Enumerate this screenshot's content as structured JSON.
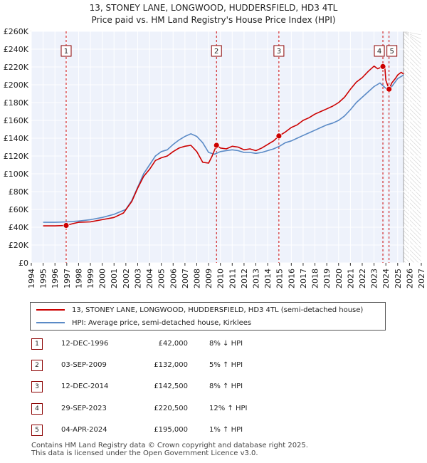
{
  "header": {
    "title_line1": "13, STONEY LANE, LONGWOOD, HUDDERSFIELD, HD3 4TL",
    "title_line2": "Price paid vs. HM Land Registry's House Price Index (HPI)"
  },
  "chart_data": {
    "type": "line",
    "xlim": [
      1994,
      2027
    ],
    "ylim": [
      0,
      260000
    ],
    "x_ticks": [
      1994,
      1995,
      1996,
      1997,
      1998,
      1999,
      2000,
      2001,
      2002,
      2003,
      2004,
      2005,
      2006,
      2007,
      2008,
      2009,
      2010,
      2011,
      2012,
      2013,
      2014,
      2015,
      2016,
      2017,
      2018,
      2019,
      2020,
      2021,
      2022,
      2023,
      2024,
      2025,
      2026,
      2027
    ],
    "y_ticks": [
      0,
      20000,
      40000,
      60000,
      80000,
      100000,
      120000,
      140000,
      160000,
      180000,
      200000,
      220000,
      240000,
      260000
    ],
    "y_tick_labels": [
      "£0",
      "£20K",
      "£40K",
      "£60K",
      "£80K",
      "£100K",
      "£120K",
      "£140K",
      "£160K",
      "£180K",
      "£200K",
      "£220K",
      "£240K",
      "£260K"
    ],
    "data_end_year": 2025.5,
    "series": [
      {
        "name": "13, STONEY LANE, LONGWOOD, HUDDERSFIELD, HD3 4TL (semi-detached house)",
        "color": "#cc0000",
        "x": [
          1995.0,
          1996.0,
          1996.95,
          1997.5,
          1998,
          1999,
          2000,
          2001,
          2001.8,
          2002.5,
          2003,
          2003.5,
          2004,
          2004.5,
          2005,
          2005.5,
          2006,
          2006.5,
          2007,
          2007.5,
          2008,
          2008.5,
          2009,
          2009.3,
          2009.67,
          2010,
          2010.5,
          2011,
          2011.5,
          2012,
          2012.5,
          2013,
          2013.5,
          2014,
          2014.5,
          2014.95,
          2015.5,
          2016,
          2016.5,
          2017,
          2017.5,
          2018,
          2018.5,
          2019,
          2019.5,
          2020,
          2020.5,
          2021,
          2021.5,
          2022,
          2022.5,
          2023,
          2023.3,
          2023.75,
          2023.9,
          2024.0,
          2024.27,
          2024.5,
          2024.8,
          2025.0,
          2025.3,
          2025.5
        ],
        "y": [
          41500,
          41500,
          42000,
          44000,
          45500,
          46000,
          48500,
          51000,
          56000,
          69000,
          84000,
          97000,
          105000,
          115000,
          118000,
          120000,
          125000,
          129000,
          131000,
          132000,
          125000,
          113000,
          112000,
          120000,
          132000,
          129000,
          128000,
          131000,
          130000,
          127000,
          128000,
          126000,
          129000,
          133000,
          137000,
          142500,
          147000,
          152000,
          155000,
          160000,
          163000,
          167000,
          170000,
          173000,
          176000,
          180000,
          186000,
          195000,
          203000,
          208000,
          215000,
          221000,
          218000,
          220500,
          222000,
          205000,
          195000,
          202000,
          207000,
          211000,
          214000,
          212000
        ]
      },
      {
        "name": "HPI: Average price, semi-detached house, Kirklees",
        "color": "#5a8ac6",
        "x": [
          1995.0,
          1996.0,
          1997.0,
          1998,
          1999,
          2000,
          2001,
          2002,
          2002.5,
          2003,
          2003.5,
          2004,
          2004.5,
          2005,
          2005.5,
          2006,
          2006.5,
          2007,
          2007.5,
          2008,
          2008.5,
          2009,
          2009.5,
          2010,
          2010.5,
          2011,
          2011.5,
          2012,
          2012.5,
          2013,
          2013.5,
          2014,
          2014.5,
          2015,
          2015.5,
          2016,
          2016.5,
          2017,
          2017.5,
          2018,
          2018.5,
          2019,
          2019.5,
          2020,
          2020.5,
          2021,
          2021.5,
          2022,
          2022.5,
          2023,
          2023.5,
          2024,
          2024.27,
          2024.5,
          2025.0,
          2025.5
        ],
        "y": [
          45500,
          45500,
          46000,
          47000,
          48500,
          51000,
          54500,
          60000,
          70000,
          85000,
          100000,
          110000,
          120000,
          125000,
          127000,
          133000,
          138000,
          142000,
          145000,
          142000,
          135000,
          124000,
          122000,
          125000,
          126000,
          127000,
          126000,
          124000,
          124000,
          123000,
          124000,
          126000,
          128000,
          131000,
          135000,
          137000,
          140000,
          143000,
          146000,
          149000,
          152000,
          155000,
          157000,
          160000,
          165000,
          172000,
          180000,
          186000,
          192000,
          198000,
          202000,
          196000,
          193000,
          198000,
          207000,
          211000
        ]
      }
    ],
    "markers": [
      {
        "label": "1",
        "x": 1996.95,
        "y": 42000
      },
      {
        "label": "2",
        "x": 2009.67,
        "y": 132000
      },
      {
        "label": "3",
        "x": 2014.95,
        "y": 142500
      },
      {
        "label": "4",
        "x": 2023.75,
        "y": 220500
      },
      {
        "label": "5",
        "x": 2024.27,
        "y": 195000
      }
    ]
  },
  "legend": {
    "entries": [
      {
        "label": "13, STONEY LANE, LONGWOOD, HUDDERSFIELD, HD3 4TL (semi-detached house)",
        "color": "#cc0000"
      },
      {
        "label": "HPI: Average price, semi-detached house, Kirklees",
        "color": "#5a8ac6"
      }
    ]
  },
  "transactions": [
    {
      "num": "1",
      "date": "12-DEC-1996",
      "price": "£42,000",
      "hpi": "8% ↓ HPI"
    },
    {
      "num": "2",
      "date": "03-SEP-2009",
      "price": "£132,000",
      "hpi": "5% ↑ HPI"
    },
    {
      "num": "3",
      "date": "12-DEC-2014",
      "price": "£142,500",
      "hpi": "8% ↑ HPI"
    },
    {
      "num": "4",
      "date": "29-SEP-2023",
      "price": "£220,500",
      "hpi": "12% ↑ HPI"
    },
    {
      "num": "5",
      "date": "04-APR-2024",
      "price": "£195,000",
      "hpi": "1% ↑ HPI"
    }
  ],
  "footer": {
    "line1": "Contains HM Land Registry data © Crown copyright and database right 2025.",
    "line2": "This data is licensed under the Open Government Licence v3.0."
  }
}
